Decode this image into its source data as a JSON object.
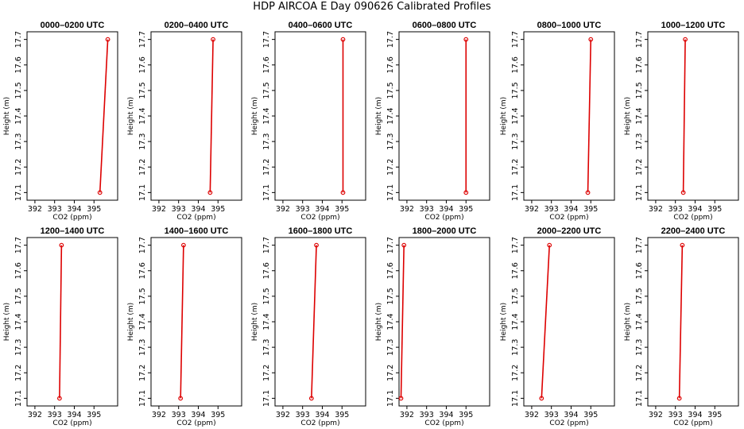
{
  "figure_title": "HDP AIRCOA E  Day 090626  Calibrated Profiles",
  "colors": {
    "profile_line": "#dd0000",
    "point_marker": "#dd0000",
    "frame": "#000000"
  },
  "chart_data": [
    {
      "type": "line",
      "title": "0000–0200 UTC",
      "xlabel": "CO2 (ppm)",
      "ylabel": "Height (m)",
      "xlim": [
        391.6,
        396.2
      ],
      "ylim": [
        17.07,
        17.73
      ],
      "xticks": [
        "392",
        "393",
        "394",
        "395"
      ],
      "yticks": [
        "17.1",
        "17.2",
        "17.3",
        "17.4",
        "17.5",
        "17.6",
        "17.7"
      ],
      "points": [
        {
          "x": 395.3,
          "y": 17.1
        },
        {
          "x": 395.7,
          "y": 17.7
        }
      ]
    },
    {
      "type": "line",
      "title": "0200–0400 UTC",
      "xlabel": "CO2 (ppm)",
      "ylabel": "Height (m)",
      "xlim": [
        391.6,
        396.2
      ],
      "ylim": [
        17.07,
        17.73
      ],
      "xticks": [
        "392",
        "393",
        "394",
        "395"
      ],
      "yticks": [
        "17.1",
        "17.2",
        "17.3",
        "17.4",
        "17.5",
        "17.6",
        "17.7"
      ],
      "points": [
        {
          "x": 394.6,
          "y": 17.1
        },
        {
          "x": 394.75,
          "y": 17.7
        }
      ]
    },
    {
      "type": "line",
      "title": "0400–0600 UTC",
      "xlabel": "CO2 (ppm)",
      "ylabel": "Height (m)",
      "xlim": [
        391.6,
        396.2
      ],
      "ylim": [
        17.07,
        17.73
      ],
      "xticks": [
        "392",
        "393",
        "394",
        "395"
      ],
      "yticks": [
        "17.1",
        "17.2",
        "17.3",
        "17.4",
        "17.5",
        "17.6",
        "17.7"
      ],
      "points": [
        {
          "x": 395.05,
          "y": 17.1
        },
        {
          "x": 395.05,
          "y": 17.7
        }
      ]
    },
    {
      "type": "line",
      "title": "0600–0800 UTC",
      "xlabel": "CO2 (ppm)",
      "ylabel": "Height (m)",
      "xlim": [
        391.6,
        396.2
      ],
      "ylim": [
        17.07,
        17.73
      ],
      "xticks": [
        "392",
        "393",
        "394",
        "395"
      ],
      "yticks": [
        "17.1",
        "17.2",
        "17.3",
        "17.4",
        "17.5",
        "17.6",
        "17.7"
      ],
      "points": [
        {
          "x": 395.0,
          "y": 17.1
        },
        {
          "x": 395.0,
          "y": 17.7
        }
      ]
    },
    {
      "type": "line",
      "title": "0800–1000 UTC",
      "xlabel": "CO2 (ppm)",
      "ylabel": "Height (m)",
      "xlim": [
        391.6,
        396.2
      ],
      "ylim": [
        17.07,
        17.73
      ],
      "xticks": [
        "392",
        "393",
        "394",
        "395"
      ],
      "yticks": [
        "17.1",
        "17.2",
        "17.3",
        "17.4",
        "17.5",
        "17.6",
        "17.7"
      ],
      "points": [
        {
          "x": 394.85,
          "y": 17.1
        },
        {
          "x": 395.0,
          "y": 17.7
        }
      ]
    },
    {
      "type": "line",
      "title": "1000–1200 UTC",
      "xlabel": "CO2 (ppm)",
      "ylabel": "Height (m)",
      "xlim": [
        391.6,
        396.2
      ],
      "ylim": [
        17.07,
        17.73
      ],
      "xticks": [
        "392",
        "393",
        "394",
        "395"
      ],
      "yticks": [
        "17.1",
        "17.2",
        "17.3",
        "17.4",
        "17.5",
        "17.6",
        "17.7"
      ],
      "points": [
        {
          "x": 393.4,
          "y": 17.1
        },
        {
          "x": 393.5,
          "y": 17.7
        }
      ]
    },
    {
      "type": "line",
      "title": "1200–1400 UTC",
      "xlabel": "CO2 (ppm)",
      "ylabel": "Height (m)",
      "xlim": [
        391.6,
        396.2
      ],
      "ylim": [
        17.07,
        17.73
      ],
      "xticks": [
        "392",
        "393",
        "394",
        "395"
      ],
      "yticks": [
        "17.1",
        "17.2",
        "17.3",
        "17.4",
        "17.5",
        "17.6",
        "17.7"
      ],
      "points": [
        {
          "x": 393.25,
          "y": 17.1
        },
        {
          "x": 393.35,
          "y": 17.7
        }
      ]
    },
    {
      "type": "line",
      "title": "1400–1600 UTC",
      "xlabel": "CO2 (ppm)",
      "ylabel": "Height (m)",
      "xlim": [
        391.6,
        396.2
      ],
      "ylim": [
        17.07,
        17.73
      ],
      "xticks": [
        "392",
        "393",
        "394",
        "395"
      ],
      "yticks": [
        "17.1",
        "17.2",
        "17.3",
        "17.4",
        "17.5",
        "17.6",
        "17.7"
      ],
      "points": [
        {
          "x": 393.1,
          "y": 17.1
        },
        {
          "x": 393.25,
          "y": 17.7
        }
      ]
    },
    {
      "type": "line",
      "title": "1600–1800 UTC",
      "xlabel": "CO2 (ppm)",
      "ylabel": "Height (m)",
      "xlim": [
        391.6,
        396.2
      ],
      "ylim": [
        17.07,
        17.73
      ],
      "xticks": [
        "392",
        "393",
        "394",
        "395"
      ],
      "yticks": [
        "17.1",
        "17.2",
        "17.3",
        "17.4",
        "17.5",
        "17.6",
        "17.7"
      ],
      "points": [
        {
          "x": 393.45,
          "y": 17.1
        },
        {
          "x": 393.7,
          "y": 17.7
        }
      ]
    },
    {
      "type": "line",
      "title": "1800–2000 UTC",
      "xlabel": "CO2 (ppm)",
      "ylabel": "Height (m)",
      "xlim": [
        391.6,
        396.2
      ],
      "ylim": [
        17.07,
        17.73
      ],
      "xticks": [
        "392",
        "393",
        "394",
        "395"
      ],
      "yticks": [
        "17.1",
        "17.2",
        "17.3",
        "17.4",
        "17.5",
        "17.6",
        "17.7"
      ],
      "points": [
        {
          "x": 391.7,
          "y": 17.1
        },
        {
          "x": 391.85,
          "y": 17.7
        }
      ]
    },
    {
      "type": "line",
      "title": "2000–2200 UTC",
      "xlabel": "CO2 (ppm)",
      "ylabel": "Height (m)",
      "xlim": [
        391.6,
        396.2
      ],
      "ylim": [
        17.07,
        17.73
      ],
      "xticks": [
        "392",
        "393",
        "394",
        "395"
      ],
      "yticks": [
        "17.1",
        "17.2",
        "17.3",
        "17.4",
        "17.5",
        "17.6",
        "17.7"
      ],
      "points": [
        {
          "x": 392.5,
          "y": 17.1
        },
        {
          "x": 392.9,
          "y": 17.7
        }
      ]
    },
    {
      "type": "line",
      "title": "2200–2400 UTC",
      "xlabel": "CO2 (ppm)",
      "ylabel": "Height (m)",
      "xlim": [
        391.6,
        396.2
      ],
      "ylim": [
        17.07,
        17.73
      ],
      "xticks": [
        "392",
        "393",
        "394",
        "395"
      ],
      "yticks": [
        "17.1",
        "17.2",
        "17.3",
        "17.4",
        "17.5",
        "17.6",
        "17.7"
      ],
      "points": [
        {
          "x": 393.2,
          "y": 17.1
        },
        {
          "x": 393.35,
          "y": 17.7
        }
      ]
    }
  ]
}
